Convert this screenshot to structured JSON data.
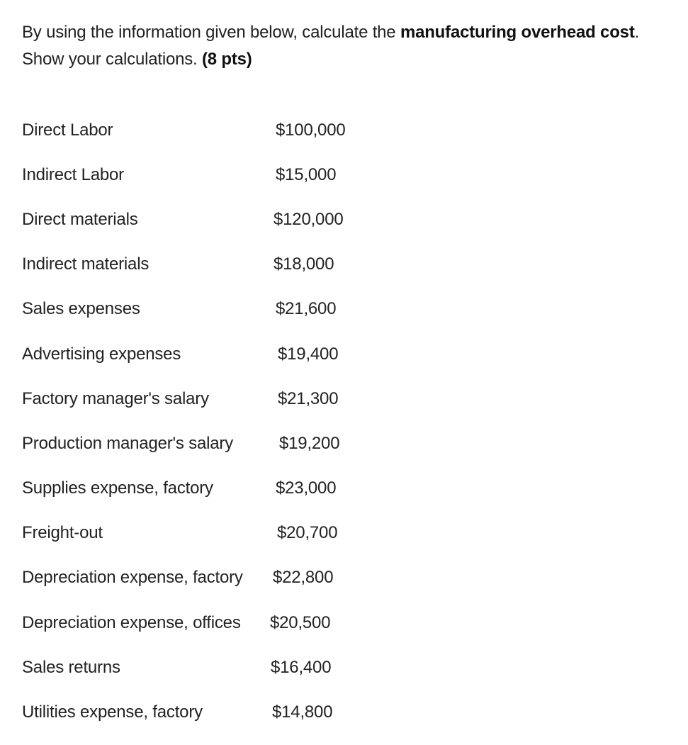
{
  "question": {
    "text_prefix": "By using the information given below, calculate the ",
    "emphasis": "manufacturing overhead cost",
    "text_mid": ". Show your calculations. ",
    "points": "(8 pts)"
  },
  "items": [
    {
      "label": "Direct Labor",
      "amount": "$100,000"
    },
    {
      "label": "Indirect Labor",
      "amount": "$15,000"
    },
    {
      "label": "Direct materials",
      "amount": "$120,000"
    },
    {
      "label": "Indirect materials",
      "amount": "$18,000"
    },
    {
      "label": "Sales expenses",
      "amount": "$21,600"
    },
    {
      "label": "Advertising expenses",
      "amount": "$19,400"
    },
    {
      "label": "Factory manager's salary",
      "amount": "$21,300"
    },
    {
      "label": "Production manager's salary",
      "amount": "$19,200"
    },
    {
      "label": "Supplies expense, factory",
      "amount": "$23,000"
    },
    {
      "label": "Freight-out",
      "amount": "$20,700"
    },
    {
      "label": "Depreciation expense, factory",
      "amount": "$22,800"
    },
    {
      "label": "Depreciation expense, offices",
      "amount": "$20,500"
    },
    {
      "label": "Sales returns",
      "amount": "$16,400"
    },
    {
      "label": "Utilities expense, factory",
      "amount": "$14,800"
    }
  ]
}
